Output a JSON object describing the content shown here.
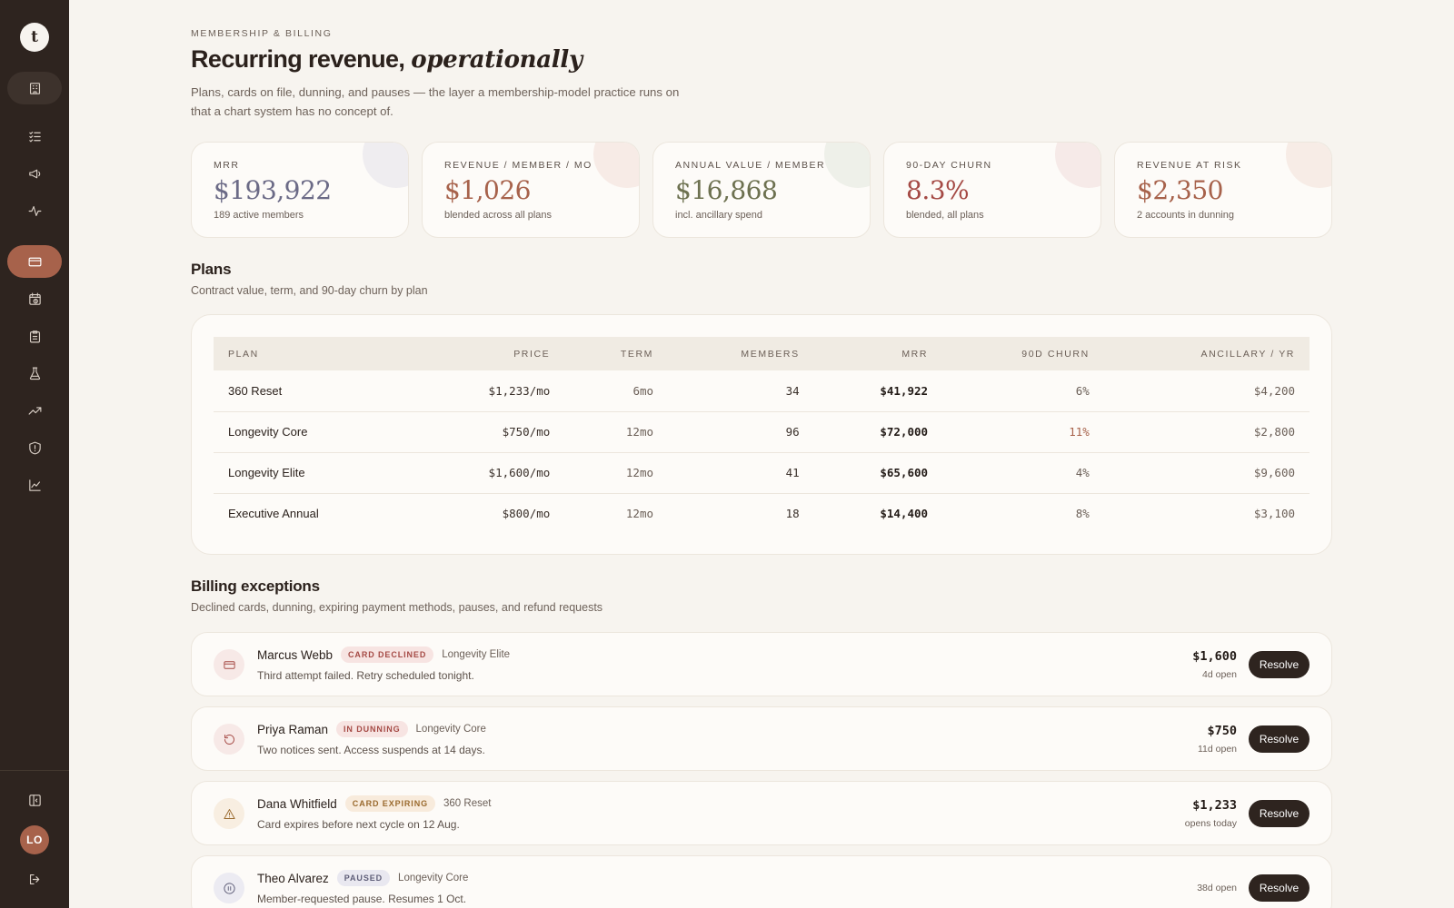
{
  "sidebar": {
    "logo": "t",
    "items": [
      {
        "icon": "building-icon"
      },
      {
        "icon": "checklist-icon"
      },
      {
        "icon": "megaphone-icon"
      },
      {
        "icon": "pulse-icon"
      },
      {
        "icon": "credit-card-icon"
      },
      {
        "icon": "calendar-clock-icon"
      },
      {
        "icon": "clipboard-icon"
      },
      {
        "icon": "flask-icon"
      },
      {
        "icon": "trending-up-icon"
      },
      {
        "icon": "shield-alert-icon"
      },
      {
        "icon": "line-chart-icon"
      }
    ],
    "avatar_initials": "LO"
  },
  "header": {
    "eyebrow": "MEMBERSHIP & BILLING",
    "title_plain": "Recurring revenue,",
    "title_italic": "operationally",
    "description": "Plans, cards on file, dunning, and pauses — the layer a membership-model practice runs on that a chart system has no concept of."
  },
  "kpis": [
    {
      "label": "MRR",
      "value": "$193,922",
      "sub": "189 active members",
      "color": "#6b6a86",
      "blob": "#efedf0"
    },
    {
      "label": "REVENUE / MEMBER / MO",
      "value": "$1,026",
      "sub": "blended across all plans",
      "color": "#a7624b",
      "blob": "#f7ebe6"
    },
    {
      "label": "ANNUAL VALUE / MEMBER",
      "value": "$16,868",
      "sub": "incl. ancillary spend",
      "color": "#6d7150",
      "blob": "#eef0e9"
    },
    {
      "label": "90-DAY CHURN",
      "value": "8.3%",
      "sub": "blended, all plans",
      "color": "#a54a45",
      "blob": "#f6eae8"
    },
    {
      "label": "REVENUE AT RISK",
      "value": "$2,350",
      "sub": "2 accounts in dunning",
      "color": "#a7624b",
      "blob": "#f7ece6"
    }
  ],
  "plans": {
    "title": "Plans",
    "subtitle": "Contract value, term, and 90-day churn by plan",
    "columns": [
      "PLAN",
      "PRICE",
      "TERM",
      "MEMBERS",
      "MRR",
      "90D CHURN",
      "ANCILLARY / YR"
    ],
    "rows": [
      {
        "plan": "360 Reset",
        "price": "$1,233/mo",
        "term": "6mo",
        "members": "34",
        "mrr": "$41,922",
        "churn": "6%",
        "ancillary": "$4,200",
        "churn_high": false
      },
      {
        "plan": "Longevity Core",
        "price": "$750/mo",
        "term": "12mo",
        "members": "96",
        "mrr": "$72,000",
        "churn": "11%",
        "ancillary": "$2,800",
        "churn_high": true
      },
      {
        "plan": "Longevity Elite",
        "price": "$1,600/mo",
        "term": "12mo",
        "members": "41",
        "mrr": "$65,600",
        "churn": "4%",
        "ancillary": "$9,600",
        "churn_high": false
      },
      {
        "plan": "Executive Annual",
        "price": "$800/mo",
        "term": "12mo",
        "members": "18",
        "mrr": "$14,400",
        "churn": "8%",
        "ancillary": "$3,100",
        "churn_high": false
      }
    ]
  },
  "exceptions": {
    "title": "Billing exceptions",
    "subtitle": "Declined cards, dunning, expiring payment methods, pauses, and refund requests",
    "resolve_label": "Resolve",
    "items": [
      {
        "name": "Marcus Webb",
        "badge": "CARD DECLINED",
        "plan": "Longevity Elite",
        "detail": "Third attempt failed. Retry scheduled tonight.",
        "amount": "$1,600",
        "age": "4d open",
        "icon": "credit-card-icon",
        "badge_bg": "#f7e4e2",
        "badge_fg": "#a54a45",
        "icon_bg": "#f7e9e7",
        "icon_fg": "#a54a45"
      },
      {
        "name": "Priya Raman",
        "badge": "IN DUNNING",
        "plan": "Longevity Core",
        "detail": "Two notices sent. Access suspends at 14 days.",
        "amount": "$750",
        "age": "11d open",
        "icon": "retry-icon",
        "badge_bg": "#f7e4e2",
        "badge_fg": "#a54a45",
        "icon_bg": "#f7e9e7",
        "icon_fg": "#a54a45"
      },
      {
        "name": "Dana Whitfield",
        "badge": "CARD EXPIRING",
        "plan": "360 Reset",
        "detail": "Card expires before next cycle on 12 Aug.",
        "amount": "$1,233",
        "age": "opens today",
        "icon": "warning-icon",
        "badge_bg": "#f8ebdc",
        "badge_fg": "#9a6a2e",
        "icon_bg": "#f8eee1",
        "icon_fg": "#9a6a2e"
      },
      {
        "name": "Theo Alvarez",
        "badge": "PAUSED",
        "plan": "Longevity Core",
        "detail": "Member-requested pause. Resumes 1 Oct.",
        "amount": "",
        "age": "38d open",
        "icon": "pause-icon",
        "badge_bg": "#e9e8f0",
        "badge_fg": "#5f5e78",
        "icon_bg": "#ecebf2",
        "icon_fg": "#5f5e78"
      }
    ]
  }
}
